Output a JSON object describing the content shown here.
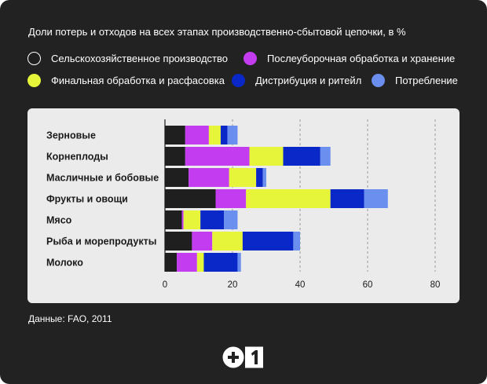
{
  "title": "Доли потерь и отходов на всех этапах производственно-сбытовой цепочки, в %",
  "source": "Данные: FAO, 2011",
  "logo_text": "+1",
  "colors": {
    "card_bg": "#222222",
    "panel_bg": "#ebebeb",
    "text": "#ffffff"
  },
  "legend": [
    {
      "label": "Сельскохозяйственное производство",
      "color": "#1f1f1f"
    },
    {
      "label": "Послеуборочная обработка и хранение",
      "color": "#c43cf0"
    },
    {
      "label": "Финальная обработка и расфасовка",
      "color": "#e6f53a"
    },
    {
      "label": "Дистрибуция и ритейл",
      "color": "#0a28c8"
    },
    {
      "label": "Потребление",
      "color": "#6a8fee"
    }
  ],
  "chart_data": {
    "type": "bar",
    "orientation": "horizontal",
    "stacked": true,
    "title": "Доли потерь и отходов на всех этапах производственно-сбытовой цепочки, в %",
    "categories": [
      "Зерновые",
      "Корнеплоды",
      "Масличные и бобовые",
      "Фрукты и овощи",
      "Мясо",
      "Рыба и морепродукты",
      "Молоко"
    ],
    "series": [
      {
        "name": "Сельскохозяйственное производство",
        "color": "#1f1f1f",
        "values": [
          6,
          6,
          7,
          15,
          5,
          8,
          3.5
        ]
      },
      {
        "name": "Послеуборочная обработка и хранение",
        "color": "#c43cf0",
        "values": [
          7,
          19,
          12,
          9,
          0.5,
          6,
          6
        ]
      },
      {
        "name": "Финальная обработка и расфасовка",
        "color": "#e6f53a",
        "values": [
          3.5,
          10,
          8,
          25,
          5,
          9,
          2
        ]
      },
      {
        "name": "Дистрибуция и ритейл",
        "color": "#0a28c8",
        "values": [
          2,
          11,
          2,
          10,
          7,
          15,
          10
        ]
      },
      {
        "name": "Потребление",
        "color": "#6a8fee",
        "values": [
          3,
          3,
          1,
          7,
          4,
          2,
          1
        ]
      }
    ],
    "xlim": [
      0,
      80
    ],
    "xticks": [
      0,
      20,
      40,
      60,
      80
    ],
    "grid": true,
    "legend": "top"
  }
}
